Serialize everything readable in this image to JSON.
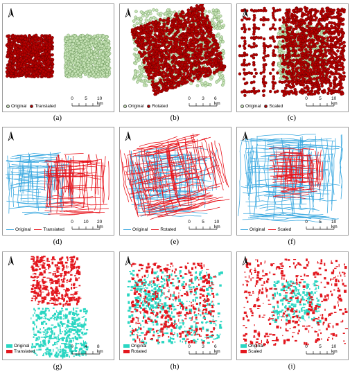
{
  "colors": {
    "original_point": "#c7e3b7",
    "transformed_point": "#b40000",
    "original_line": "#39a8e0",
    "transformed_line": "#e8141c",
    "original_poly": "#2ad6c2",
    "transformed_poly": "#e3171e"
  },
  "north_icon": "north-arrow-icon",
  "panels": [
    {
      "id": "a",
      "caption": "(a)",
      "type": "points",
      "mode": "translated",
      "legend": [
        "Original",
        "Translated"
      ],
      "scale": [
        "0",
        "5",
        "10 km"
      ]
    },
    {
      "id": "b",
      "caption": "(b)",
      "type": "points",
      "mode": "rotated",
      "legend": [
        "Original",
        "Rotated"
      ],
      "scale": [
        "0",
        "3",
        "6 km"
      ]
    },
    {
      "id": "c",
      "caption": "(c)",
      "type": "points",
      "mode": "scaled",
      "legend": [
        "Original",
        "Scaled"
      ],
      "scale": [
        "0",
        "5",
        "10 km"
      ]
    },
    {
      "id": "d",
      "caption": "(d)",
      "type": "lines",
      "mode": "translated",
      "legend": [
        "Original",
        "Translated"
      ],
      "scale": [
        "0",
        "10",
        "20 km"
      ]
    },
    {
      "id": "e",
      "caption": "(e)",
      "type": "lines",
      "mode": "rotated",
      "legend": [
        "Original",
        "Rotated"
      ],
      "scale": [
        "0",
        "5",
        "10 km"
      ]
    },
    {
      "id": "f",
      "caption": "(f)",
      "type": "lines",
      "mode": "scaled",
      "legend": [
        "Original",
        "Scaled"
      ],
      "scale": [
        "0",
        "5",
        "10 km"
      ]
    },
    {
      "id": "g",
      "caption": "(g)",
      "type": "polys",
      "mode": "translated",
      "legend": [
        "Original",
        "Translated"
      ],
      "scale": [
        "0",
        "4",
        "8 km"
      ]
    },
    {
      "id": "h",
      "caption": "(h)",
      "type": "polys",
      "mode": "rotated",
      "legend": [
        "Original",
        "Rotated"
      ],
      "scale": [
        "0",
        "3",
        "6 km"
      ]
    },
    {
      "id": "i",
      "caption": "(i)",
      "type": "polys",
      "mode": "scaled",
      "legend": [
        "Original",
        "Scaled"
      ],
      "scale": [
        "0",
        "5",
        "10 km"
      ]
    }
  ]
}
